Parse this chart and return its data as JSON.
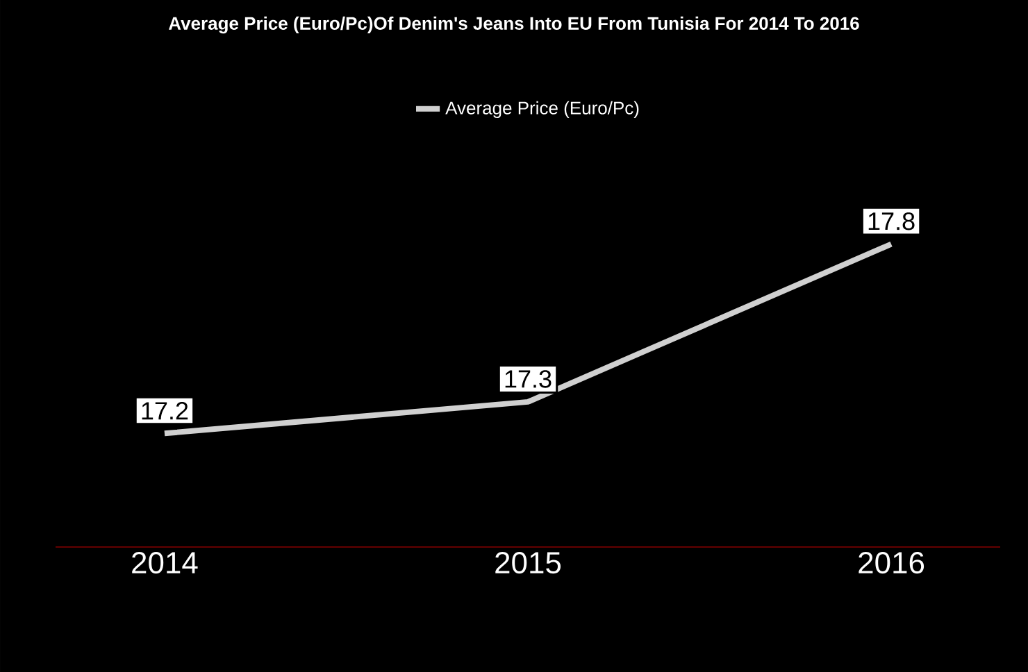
{
  "chart_data": {
    "type": "line",
    "title": "Average Price (Euro/Pc)Of Denim's Jeans Into EU From Tunisia For 2014 To 2016",
    "categories": [
      "2014",
      "2015",
      "2016"
    ],
    "series": [
      {
        "name": "Average Price (Euro/Pc)",
        "color": "#d0d0d0",
        "values": [
          17.2,
          17.3,
          17.8
        ]
      }
    ],
    "data_labels": true,
    "legend": "top"
  }
}
